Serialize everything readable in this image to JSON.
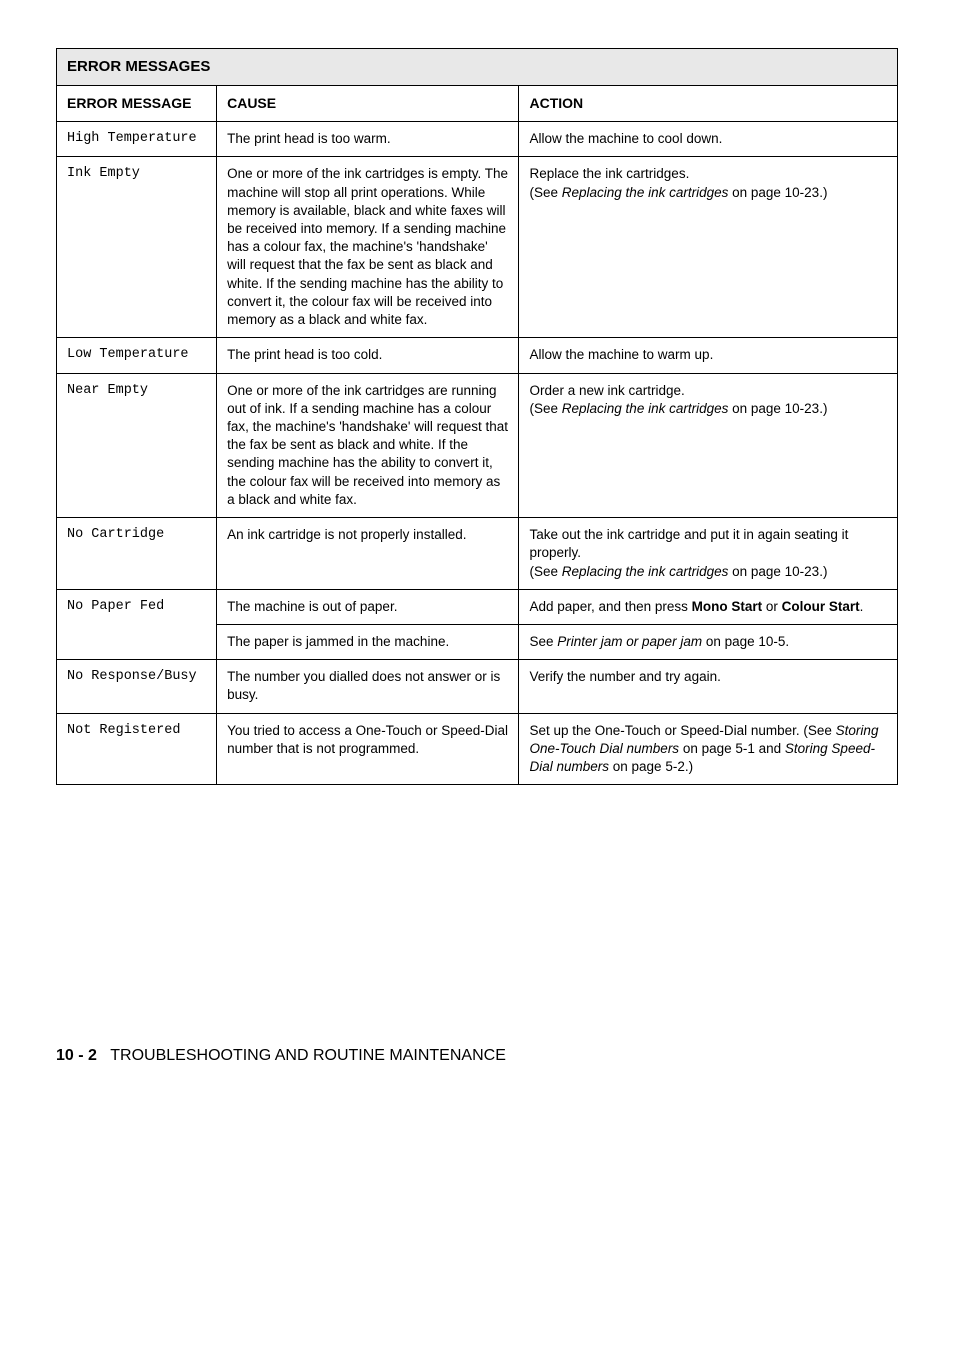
{
  "table": {
    "title": "ERROR MESSAGES",
    "headers": {
      "message": "ERROR MESSAGE",
      "cause": "CAUSE",
      "action": "ACTION"
    },
    "rows": [
      {
        "msg": "High Temperature",
        "cause": "The print head is too warm.",
        "action": "Allow the machine to cool down."
      },
      {
        "msg": "Ink Empty",
        "cause": "One or more of the ink cartridges is empty. The machine will stop all print operations. While memory is available, black and white faxes will be received into memory. If a sending machine has a colour fax, the machine's 'handshake' will request that the fax be sent as black and white. If the sending machine has the ability to convert it, the colour fax will be received into memory as a black and white fax.",
        "action_pre": "Replace the ink cartridges.\n(See ",
        "action_italic": "Replacing the ink cartridges",
        "action_post": " on page 10-23.)"
      },
      {
        "msg": "Low Temperature",
        "cause": "The print head is too cold.",
        "action": "Allow the machine to warm up."
      },
      {
        "msg": "Near Empty",
        "cause": "One or more of the ink cartridges are running out of ink. If a sending machine has a colour fax, the machine's 'handshake' will request that the fax be sent as black and white. If the sending machine has the ability to convert it, the colour fax will be received into memory as a black and white fax.",
        "action_pre": "Order a new ink cartridge.\n(See ",
        "action_italic": "Replacing the ink cartridges",
        "action_post": " on page 10-23.)"
      },
      {
        "msg": "No Cartridge",
        "cause": "An ink cartridge is not properly installed.",
        "action_pre": "Take out the ink cartridge and put it in again seating it properly.\n(See ",
        "action_italic": "Replacing the ink cartridges",
        "action_post": " on page 10-23.)"
      },
      {
        "msg": "No Paper Fed",
        "cause": "The machine is out of paper.",
        "action_pre": "Add paper, and then press ",
        "action_bold1": "Mono Start",
        "action_mid": " or ",
        "action_bold2": "Colour Start",
        "action_post": "."
      },
      {
        "cause": "The paper is jammed in the machine.",
        "action_pre": "See ",
        "action_italic": "Printer jam or paper jam",
        "action_post": " on page 10-5."
      },
      {
        "msg": "No Response/Busy",
        "cause": "The number you dialled does not answer or is busy.",
        "action": "Verify the number and try again."
      },
      {
        "msg": "Not Registered",
        "cause": "You tried to access a One-Touch or Speed-Dial number that is not programmed.",
        "action_pre": "Set up the One-Touch or Speed-Dial number. (See ",
        "action_italic": "Storing One-Touch Dial numbers",
        "action_mid": " on page 5-1 and ",
        "action_italic2": "Storing Speed-Dial numbers",
        "action_post": " on page 5-2.)"
      }
    ]
  },
  "footer": {
    "page": "10 - 2",
    "title": "TROUBLESHOOTING AND ROUTINE MAINTENANCE"
  }
}
